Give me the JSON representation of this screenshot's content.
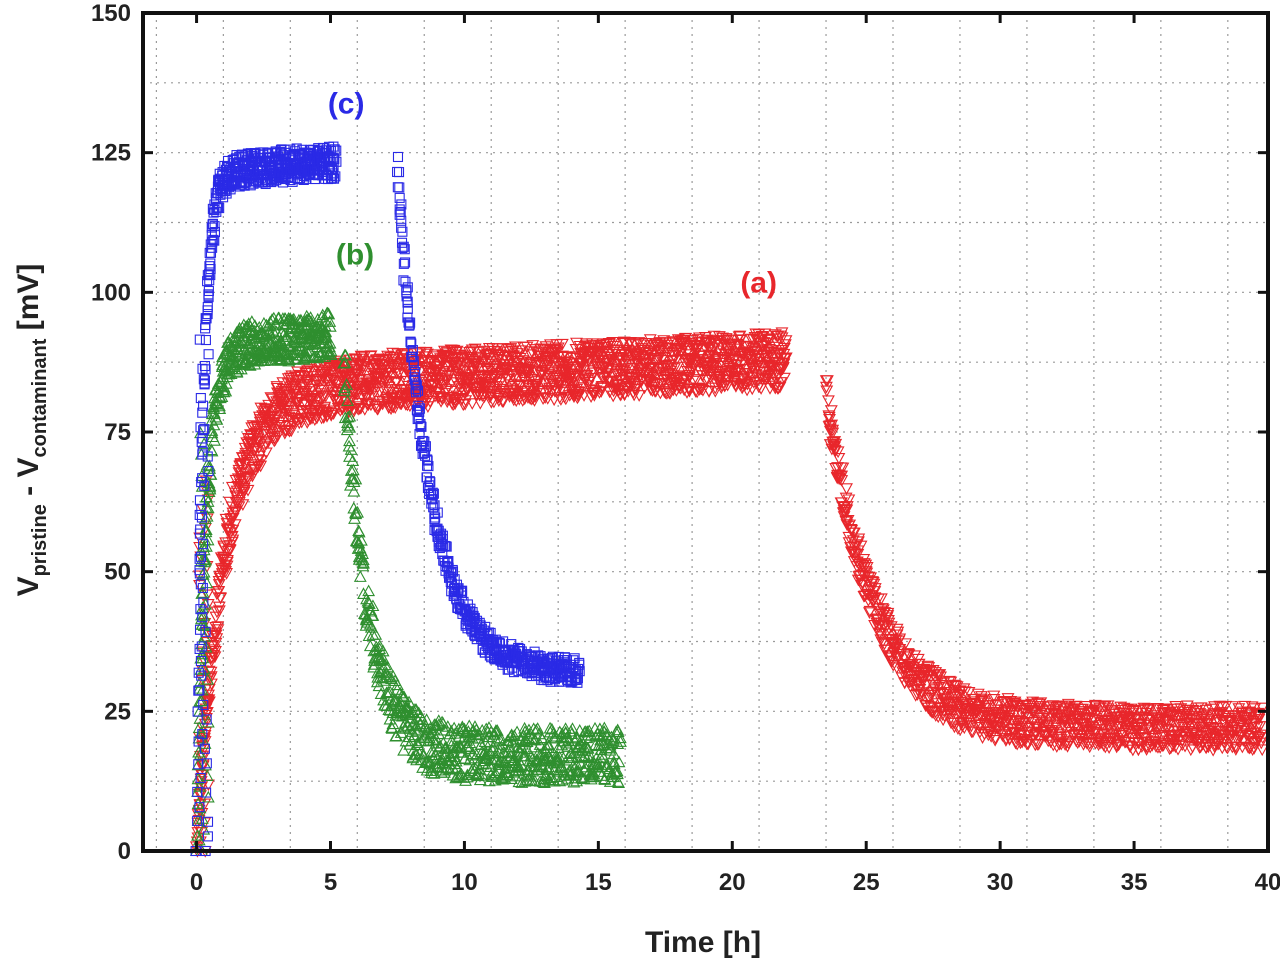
{
  "chart_data": {
    "type": "scatter",
    "title": "",
    "xlabel": "Time [h]",
    "ylabel": {
      "v1": "V",
      "sub1": "pristine",
      "mid": " - ",
      "v2": "V",
      "sub2": "contaminant",
      "unit": " [mV]"
    },
    "xlim": [
      -2,
      40
    ],
    "ylim": [
      0,
      150
    ],
    "xticks": [
      0,
      5,
      10,
      15,
      20,
      25,
      30,
      35,
      40
    ],
    "yticks": [
      0,
      25,
      50,
      75,
      100,
      125,
      150
    ],
    "grid": true,
    "series": [
      {
        "name": "(a)",
        "label": "(a)",
        "marker": "triangle-down",
        "color": "#e8262b",
        "label_at": [
          20.3,
          100
        ],
        "phases": [
          {
            "kind": "rise",
            "t0": 0.0,
            "t1": 22.0,
            "plateau_lo": 78,
            "plateau_hi": 87,
            "drift": 0.3,
            "tau": 1.1,
            "spread": 5
          },
          {
            "kind": "decay",
            "t0": 23.5,
            "t1": 39.8,
            "start": 82,
            "end": 22,
            "tau": 1.8,
            "spread": 4
          }
        ]
      },
      {
        "name": "(b)",
        "label": "(b)",
        "marker": "triangle-up",
        "color": "#2f8f2f",
        "label_at": [
          5.2,
          105
        ],
        "phases": [
          {
            "kind": "rise",
            "t0": 0.0,
            "t1": 5.0,
            "plateau_lo": 88,
            "plateau_hi": 92,
            "drift": 0.0,
            "tau": 0.35,
            "spread": 4
          },
          {
            "kind": "decay",
            "t0": 5.5,
            "t1": 15.8,
            "start": 88,
            "end": 17,
            "tau": 0.9,
            "spread": 5
          }
        ]
      },
      {
        "name": "(c)",
        "label": "(c)",
        "marker": "square",
        "color": "#2a2ae6",
        "label_at": [
          4.9,
          132
        ],
        "phases": [
          {
            "kind": "rise",
            "t0": 0.0,
            "t1": 5.2,
            "plateau_lo": 120,
            "plateau_hi": 123,
            "drift": 0.0,
            "tau": 0.25,
            "spread": 3
          },
          {
            "kind": "decay",
            "t0": 7.5,
            "t1": 14.3,
            "start": 122,
            "end": 32,
            "tau": 1.2,
            "spread": 2.5
          }
        ]
      }
    ]
  }
}
